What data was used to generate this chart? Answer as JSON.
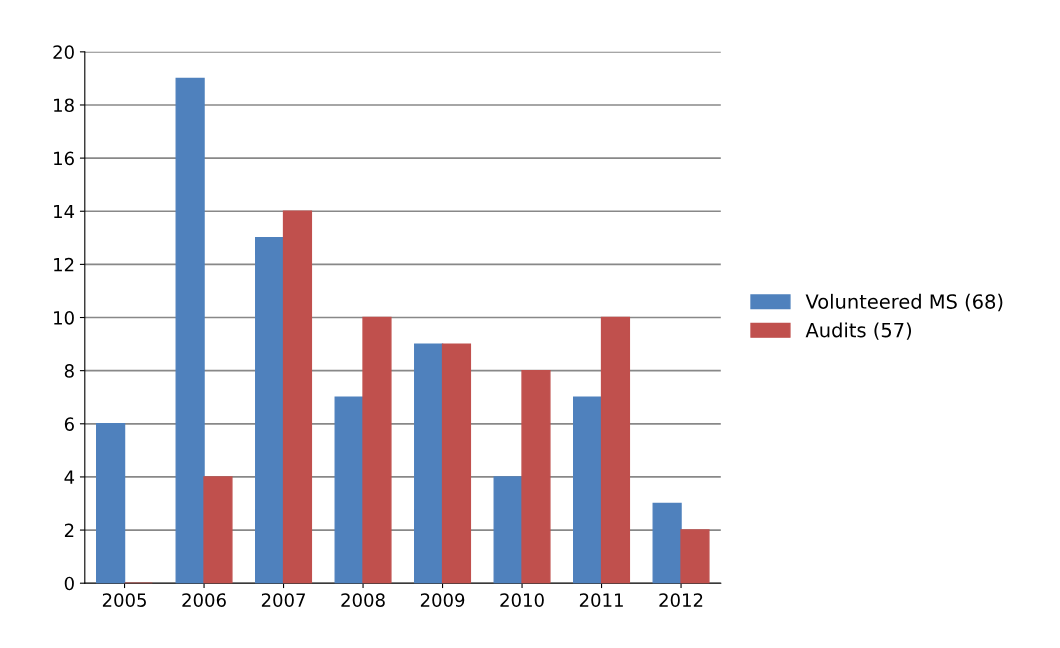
{
  "chart_data": {
    "type": "bar",
    "categories": [
      "2005",
      "2006",
      "2007",
      "2008",
      "2009",
      "2010",
      "2011",
      "2012"
    ],
    "series": [
      {
        "name": "Volunteered MS (68)",
        "color": "#4f81bd",
        "values": [
          6,
          19,
          13,
          7,
          9,
          4,
          7,
          3
        ]
      },
      {
        "name": "Audits (57)",
        "color": "#c0504d",
        "values": [
          0,
          4,
          14,
          10,
          9,
          8,
          10,
          2
        ]
      }
    ],
    "ylim": [
      0,
      20
    ],
    "yticks": [
      0,
      2,
      4,
      6,
      8,
      10,
      12,
      14,
      16,
      18,
      20
    ],
    "grid": "y",
    "legend": "right"
  }
}
